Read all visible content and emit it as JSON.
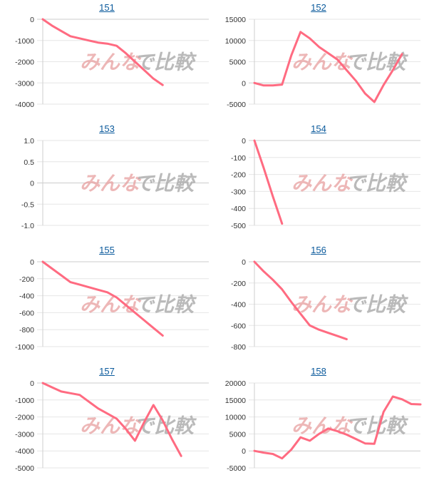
{
  "colors": {
    "line": "#ff6b81",
    "grid": "#e6e6e6",
    "axis": "#cfcfcf",
    "title_link": "#0b5a9c"
  },
  "watermark": {
    "text_left": "みんな",
    "text_right": "で比較"
  },
  "chart_data": [
    {
      "type": "line",
      "title": "151",
      "ylim": [
        -4000,
        0
      ],
      "ticks": [
        0,
        -1000,
        -2000,
        -3000,
        -4000
      ],
      "tick_labels": [
        "0",
        "-1000",
        "-2000",
        "-3000",
        "-4000"
      ],
      "xmax": 18,
      "x": [
        0,
        1,
        2,
        3,
        4,
        5,
        6,
        7,
        8,
        9,
        10,
        11,
        12,
        13
      ],
      "values": [
        0,
        -300,
        -550,
        -800,
        -900,
        -1000,
        -1100,
        -1150,
        -1250,
        -1600,
        -2000,
        -2400,
        -2800,
        -3100
      ]
    },
    {
      "type": "line",
      "title": "152",
      "ylim": [
        -5000,
        15000
      ],
      "ticks": [
        15000,
        10000,
        5000,
        0,
        -5000
      ],
      "tick_labels": [
        "15000",
        "10000",
        "5000",
        "0",
        "-5000"
      ],
      "xmax": 18,
      "x": [
        0,
        1,
        2,
        3,
        4,
        5,
        6,
        7,
        8,
        9,
        10,
        11,
        12,
        13,
        14,
        15,
        16
      ],
      "values": [
        0,
        -600,
        -600,
        -400,
        6500,
        12000,
        10500,
        8500,
        7000,
        5500,
        3000,
        500,
        -2500,
        -4500,
        -500,
        3000,
        6800
      ]
    },
    {
      "type": "line",
      "title": "153",
      "ylim": [
        -1,
        1
      ],
      "ticks": [
        1,
        0.5,
        0,
        -0.5,
        -1
      ],
      "tick_labels": [
        "1.0",
        "0.5",
        "0",
        "-0.5",
        "-1.0"
      ],
      "xmax": 18,
      "x": [],
      "values": []
    },
    {
      "type": "line",
      "title": "154",
      "ylim": [
        -500,
        0
      ],
      "ticks": [
        0,
        -100,
        -200,
        -300,
        -400,
        -500
      ],
      "tick_labels": [
        "0",
        "-100",
        "-200",
        "-300",
        "-400",
        "-500"
      ],
      "xmax": 18,
      "x": [
        0,
        1,
        2,
        3
      ],
      "values": [
        0,
        -160,
        -330,
        -490
      ]
    },
    {
      "type": "line",
      "title": "155",
      "ylim": [
        -1000,
        0
      ],
      "ticks": [
        0,
        -200,
        -400,
        -600,
        -800,
        -1000
      ],
      "tick_labels": [
        "0",
        "-200",
        "-400",
        "-600",
        "-800",
        "-1000"
      ],
      "xmax": 18,
      "x": [
        0,
        1,
        2,
        3,
        4,
        5,
        6,
        7,
        8,
        9,
        10,
        11,
        12,
        13
      ],
      "values": [
        0,
        -80,
        -160,
        -240,
        -270,
        -300,
        -330,
        -360,
        -420,
        -510,
        -600,
        -690,
        -780,
        -870
      ]
    },
    {
      "type": "line",
      "title": "156",
      "ylim": [
        -800,
        0
      ],
      "ticks": [
        0,
        -200,
        -400,
        -600,
        -800
      ],
      "tick_labels": [
        "0",
        "-200",
        "-400",
        "-600",
        "-800"
      ],
      "xmax": 18,
      "x": [
        0,
        1,
        2,
        3,
        4,
        5,
        6,
        7,
        8,
        9,
        10
      ],
      "values": [
        0,
        -90,
        -170,
        -260,
        -380,
        -490,
        -600,
        -640,
        -670,
        -700,
        -730
      ]
    },
    {
      "type": "line",
      "title": "157",
      "ylim": [
        -5000,
        0
      ],
      "ticks": [
        0,
        -1000,
        -2000,
        -3000,
        -4000,
        -5000
      ],
      "tick_labels": [
        "0",
        "-1000",
        "-2000",
        "-3000",
        "-4000",
        "-5000"
      ],
      "xmax": 18,
      "x": [
        0,
        1,
        2,
        3,
        4,
        5,
        6,
        7,
        8,
        9,
        10,
        11,
        12,
        13,
        14,
        15
      ],
      "values": [
        0,
        -250,
        -500,
        -600,
        -700,
        -1100,
        -1500,
        -1800,
        -2100,
        -2700,
        -3400,
        -2300,
        -1300,
        -2200,
        -3300,
        -4300
      ]
    },
    {
      "type": "line",
      "title": "158",
      "ylim": [
        -5000,
        20000
      ],
      "ticks": [
        20000,
        15000,
        10000,
        5000,
        0,
        -5000
      ],
      "tick_labels": [
        "20000",
        "15000",
        "10000",
        "5000",
        "0",
        "-5000"
      ],
      "xmax": 18,
      "x": [
        0,
        1,
        2,
        3,
        4,
        5,
        6,
        7,
        8,
        9,
        10,
        11,
        12,
        13,
        14,
        15,
        16,
        17,
        18
      ],
      "values": [
        0,
        -500,
        -900,
        -2200,
        400,
        4000,
        3000,
        5000,
        6600,
        5800,
        4800,
        3500,
        2200,
        2100,
        11500,
        16000,
        15200,
        13800,
        13700
      ]
    }
  ]
}
